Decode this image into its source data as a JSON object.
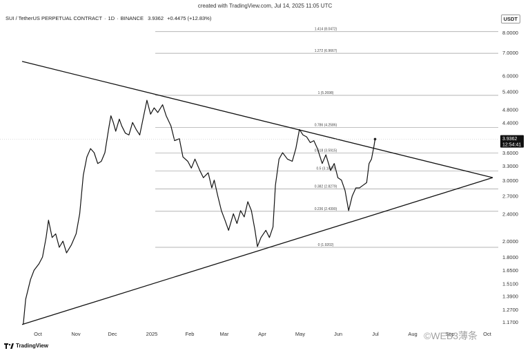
{
  "credit": "created with TradingView.com, Jul 14, 2025 11:05 UTC",
  "header": {
    "symbol": "SUI / TetherUS PERPETUAL CONTRACT",
    "interval": "1D",
    "exchange": "BINANCE",
    "price": "3.9362",
    "change": "+0.4475 (+12.83%)"
  },
  "currency": "USDT",
  "footer": {
    "brand": "TradingView"
  },
  "watermark": "©WEB3薄条",
  "chart_data": {
    "type": "line",
    "y_scale": "log",
    "y_ticks": [
      "8.0000",
      "7.0000",
      "6.0000",
      "5.4000",
      "4.8000",
      "4.4000",
      "3.6000",
      "3.3000",
      "3.0000",
      "2.7000",
      "2.4000",
      "2.0000",
      "1.8000",
      "1.6500",
      "1.5100",
      "1.3900",
      "1.2700",
      "1.1700"
    ],
    "x_ticks": [
      "Oct",
      "Nov",
      "Dec",
      "2025",
      "Feb",
      "Mar",
      "Apr",
      "May",
      "Jun",
      "Jul",
      "Aug",
      "Sep",
      "Oct"
    ],
    "last_price": {
      "value": "3.9362",
      "countdown": "12:54:41"
    },
    "fib_levels": [
      {
        "label": "1.414 (8.0472)",
        "value": 8.0472
      },
      {
        "label": "1.272 (6.9667)",
        "value": 6.9667
      },
      {
        "label": "1 (5.2698)",
        "value": 5.2698
      },
      {
        "label": "0.786 (4.2586)",
        "value": 4.2586
      },
      {
        "label": "0.618 (3.5915)",
        "value": 3.5915
      },
      {
        "label": "0.5 (3.1877)",
        "value": 3.1877
      },
      {
        "label": "0.382 (2.8279)",
        "value": 2.8279
      },
      {
        "label": "0.236 (2.4390)",
        "value": 2.439
      },
      {
        "label": "0 (1.9202)",
        "value": 1.9202
      }
    ],
    "triangle": {
      "upper_line": [
        {
          "x": "2024-09-23",
          "y": 6.6
        },
        {
          "x": "2025-10-20",
          "y": 3.05
        }
      ],
      "lower_line": [
        {
          "x": "2024-09-23",
          "y": 1.15
        },
        {
          "x": "2025-10-20",
          "y": 3.05
        }
      ]
    },
    "series": [
      {
        "values": [
          [
            "2024-09-24",
            1.15
          ],
          [
            "2024-09-26",
            1.36
          ],
          [
            "2024-09-30",
            1.55
          ],
          [
            "2024-10-03",
            1.65
          ],
          [
            "2024-10-07",
            1.72
          ],
          [
            "2024-10-10",
            1.8
          ],
          [
            "2024-10-13",
            2.05
          ],
          [
            "2024-10-15",
            2.3
          ],
          [
            "2024-10-18",
            2.05
          ],
          [
            "2024-10-21",
            2.1
          ],
          [
            "2024-10-24",
            1.92
          ],
          [
            "2024-10-27",
            2.0
          ],
          [
            "2024-10-30",
            1.85
          ],
          [
            "2024-11-03",
            1.95
          ],
          [
            "2024-11-07",
            2.1
          ],
          [
            "2024-11-10",
            2.4
          ],
          [
            "2024-11-13",
            3.1
          ],
          [
            "2024-11-16",
            3.5
          ],
          [
            "2024-11-19",
            3.7
          ],
          [
            "2024-11-22",
            3.6
          ],
          [
            "2024-11-25",
            3.35
          ],
          [
            "2024-11-28",
            3.4
          ],
          [
            "2024-12-01",
            3.6
          ],
          [
            "2024-12-04",
            4.2
          ],
          [
            "2024-12-06",
            4.6
          ],
          [
            "2024-12-08",
            4.4
          ],
          [
            "2024-12-10",
            4.15
          ],
          [
            "2024-12-13",
            4.5
          ],
          [
            "2024-12-15",
            4.3
          ],
          [
            "2024-12-18",
            4.1
          ],
          [
            "2024-12-21",
            4.05
          ],
          [
            "2024-12-24",
            4.4
          ],
          [
            "2024-12-27",
            4.2
          ],
          [
            "2024-12-30",
            4.05
          ],
          [
            "2025-01-02",
            4.55
          ],
          [
            "2025-01-05",
            5.1
          ],
          [
            "2025-01-08",
            4.65
          ],
          [
            "2025-01-11",
            4.85
          ],
          [
            "2025-01-14",
            4.7
          ],
          [
            "2025-01-18",
            4.95
          ],
          [
            "2025-01-21",
            4.6
          ],
          [
            "2025-01-25",
            4.3
          ],
          [
            "2025-01-28",
            3.9
          ],
          [
            "2025-02-01",
            3.95
          ],
          [
            "2025-02-04",
            3.5
          ],
          [
            "2025-02-08",
            3.4
          ],
          [
            "2025-02-11",
            3.25
          ],
          [
            "2025-02-14",
            3.45
          ],
          [
            "2025-02-18",
            3.2
          ],
          [
            "2025-02-21",
            3.05
          ],
          [
            "2025-02-25",
            3.15
          ],
          [
            "2025-02-28",
            2.85
          ],
          [
            "2025-03-02",
            3.0
          ],
          [
            "2025-03-05",
            2.7
          ],
          [
            "2025-03-08",
            2.45
          ],
          [
            "2025-03-11",
            2.3
          ],
          [
            "2025-03-14",
            2.15
          ],
          [
            "2025-03-18",
            2.4
          ],
          [
            "2025-03-21",
            2.25
          ],
          [
            "2025-03-24",
            2.45
          ],
          [
            "2025-03-27",
            2.35
          ],
          [
            "2025-03-30",
            2.6
          ],
          [
            "2025-04-02",
            2.45
          ],
          [
            "2025-04-05",
            2.15
          ],
          [
            "2025-04-07",
            1.93
          ],
          [
            "2025-04-10",
            2.05
          ],
          [
            "2025-04-14",
            2.15
          ],
          [
            "2025-04-17",
            2.05
          ],
          [
            "2025-04-20",
            2.2
          ],
          [
            "2025-04-22",
            2.9
          ],
          [
            "2025-04-25",
            3.45
          ],
          [
            "2025-04-28",
            3.6
          ],
          [
            "2025-05-02",
            3.45
          ],
          [
            "2025-05-06",
            3.4
          ],
          [
            "2025-05-09",
            3.7
          ],
          [
            "2025-05-12",
            4.2
          ],
          [
            "2025-05-15",
            4.05
          ],
          [
            "2025-05-18",
            4.0
          ],
          [
            "2025-05-21",
            3.85
          ],
          [
            "2025-05-24",
            3.9
          ],
          [
            "2025-05-27",
            3.7
          ],
          [
            "2025-05-31",
            3.35
          ],
          [
            "2025-06-03",
            3.55
          ],
          [
            "2025-06-07",
            3.2
          ],
          [
            "2025-06-10",
            3.35
          ],
          [
            "2025-06-13",
            3.05
          ],
          [
            "2025-06-16",
            3.0
          ],
          [
            "2025-06-19",
            2.8
          ],
          [
            "2025-06-22",
            2.45
          ],
          [
            "2025-06-25",
            2.7
          ],
          [
            "2025-06-28",
            2.85
          ],
          [
            "2025-07-01",
            2.85
          ],
          [
            "2025-07-04",
            2.9
          ],
          [
            "2025-07-07",
            2.95
          ],
          [
            "2025-07-09",
            3.35
          ],
          [
            "2025-07-11",
            3.45
          ],
          [
            "2025-07-13",
            3.75
          ],
          [
            "2025-07-14",
            3.94
          ]
        ]
      }
    ]
  }
}
